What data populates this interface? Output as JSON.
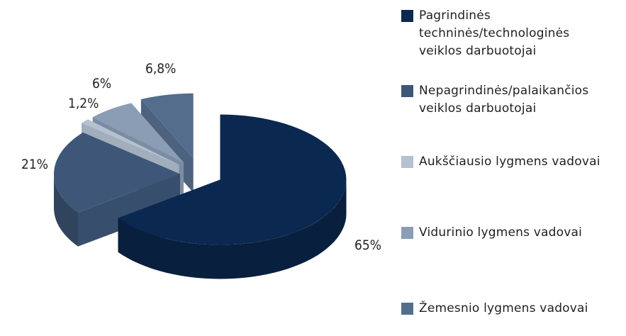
{
  "chart_data": {
    "type": "pie3d",
    "series": [
      {
        "name": "Pagrindinės techninės/technologinės veiklos darbuotojai",
        "color": "#0b2850"
      },
      {
        "name": "Nepagrindinės/palaikančios veiklos darbuotojai",
        "color": "#3e5779"
      },
      {
        "name": "Aukščiausio lygmens vadovai",
        "color": "#b3c1d1"
      },
      {
        "name": "Vidurinio lygmens vadovai",
        "color": "#8a9db5"
      },
      {
        "name": "Žemesnio lygmens vadovai",
        "color": "#546d8d"
      }
    ],
    "values": [
      65,
      21,
      1.2,
      6,
      6.8
    ],
    "value_labels": [
      "65%",
      "21%",
      "1,2%",
      "6%",
      "6,8%"
    ],
    "legend": "right"
  }
}
